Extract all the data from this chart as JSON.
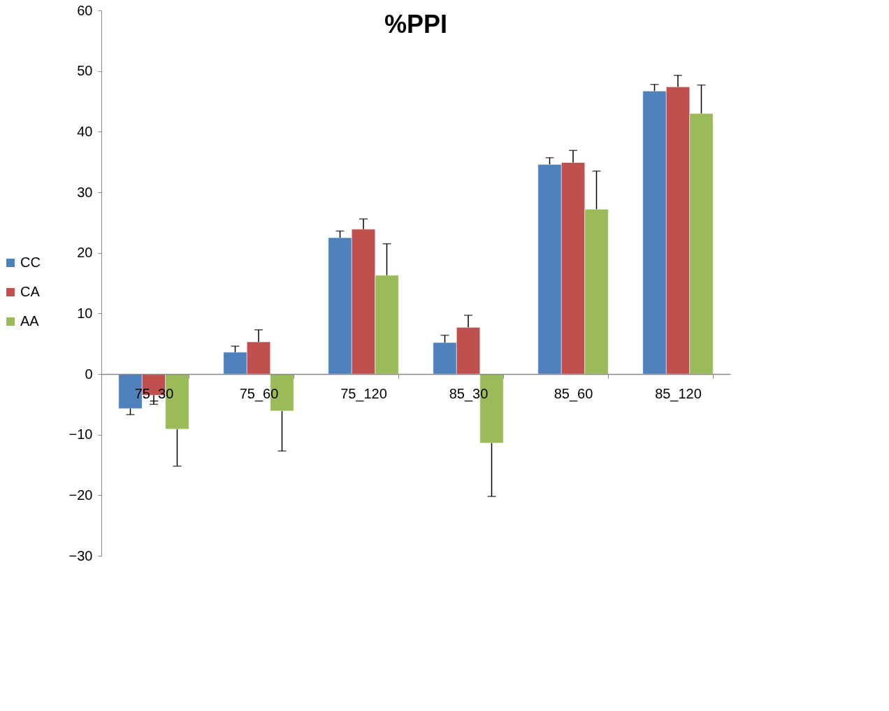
{
  "chart_data": {
    "type": "bar",
    "title": "%PPI",
    "categories": [
      "75_30",
      "75_60",
      "75_120",
      "85_30",
      "85_60",
      "85_120"
    ],
    "series": [
      {
        "name": "CC",
        "color": "#4f81bd",
        "values": [
          -5.7,
          3.6,
          22.5,
          5.2,
          34.6,
          46.7
        ],
        "errors": [
          [
            -6.7,
            -5.7
          ],
          [
            3.6,
            4.6
          ],
          [
            22.5,
            23.6
          ],
          [
            5.2,
            6.4
          ],
          [
            34.6,
            35.7
          ],
          [
            46.7,
            47.8
          ]
        ]
      },
      {
        "name": "CA",
        "color": "#c0504d",
        "values": [
          -3.5,
          5.3,
          23.9,
          7.7,
          34.9,
          47.4
        ],
        "errors": [
          [
            -5.0,
            -3.5
          ],
          [
            5.3,
            7.3
          ],
          [
            23.9,
            25.6
          ],
          [
            7.7,
            9.7
          ],
          [
            34.9,
            36.9
          ],
          [
            47.4,
            49.3
          ]
        ]
      },
      {
        "name": "AA",
        "color": "#9bbb59",
        "values": [
          -9.1,
          -6.1,
          16.3,
          -11.4,
          27.2,
          43.0
        ],
        "errors": [
          [
            -15.2,
            -9.1
          ],
          [
            -12.7,
            -6.1
          ],
          [
            16.3,
            21.5
          ],
          [
            -20.2,
            -11.4
          ],
          [
            27.2,
            33.5
          ],
          [
            43.0,
            47.7
          ]
        ]
      }
    ],
    "ylim": [
      -30,
      60
    ],
    "yticks": [
      -30,
      -20,
      -10,
      0,
      10,
      20,
      30,
      40,
      50,
      60
    ],
    "grid": false,
    "legend": "left"
  }
}
